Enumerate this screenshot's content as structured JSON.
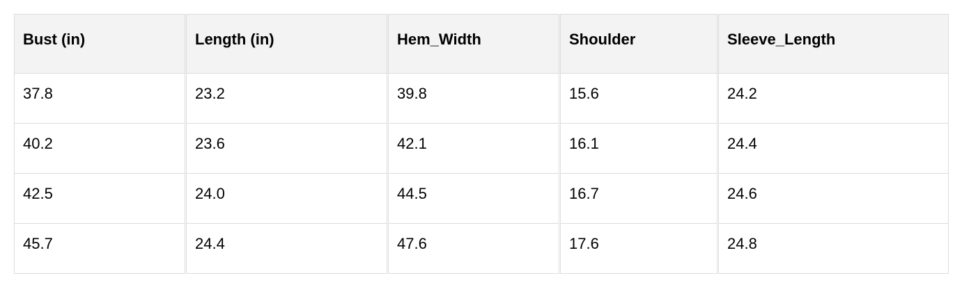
{
  "table": {
    "headers": [
      "Bust (in)",
      "Length (in)",
      "Hem_Width",
      "Shoulder",
      "Sleeve_Length"
    ],
    "rows": [
      [
        "37.8",
        "23.2",
        "39.8",
        "15.6",
        "24.2"
      ],
      [
        "40.2",
        "23.6",
        "42.1",
        "16.1",
        "24.4"
      ],
      [
        "42.5",
        "24.0",
        "44.5",
        "16.7",
        "24.6"
      ],
      [
        "45.7",
        "24.4",
        "47.6",
        "17.6",
        "24.8"
      ]
    ]
  }
}
